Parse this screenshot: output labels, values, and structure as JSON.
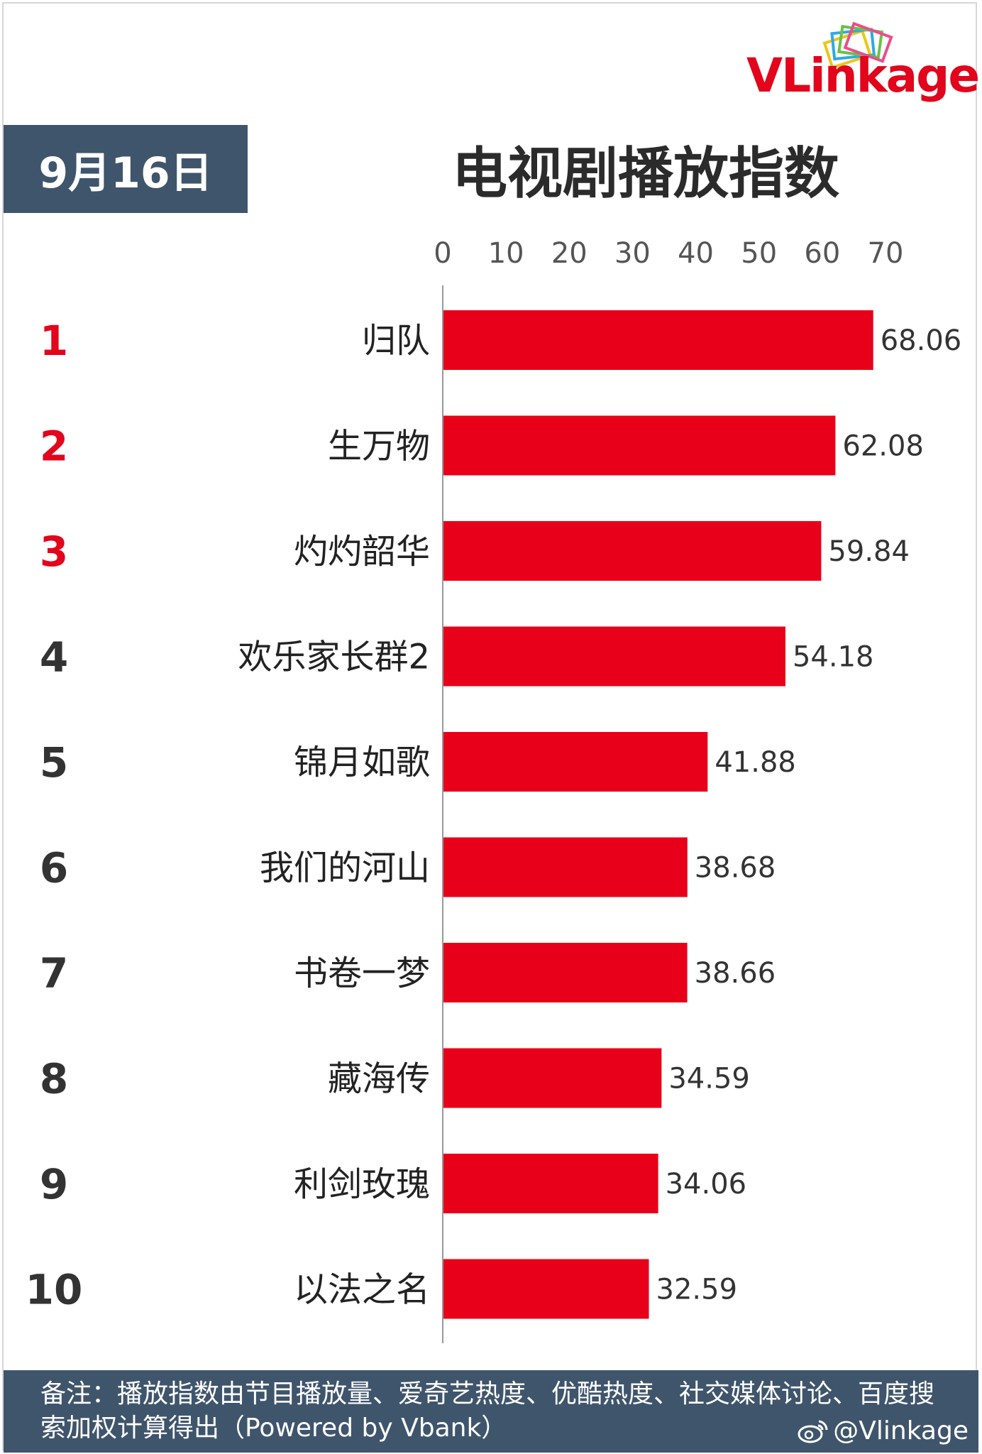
{
  "header": {
    "brand": "VLinkage",
    "date": "9月16日",
    "title": "电视剧播放指数"
  },
  "colors": {
    "bar": "#e8001a",
    "top_rank": "#e2051b",
    "rank": "#333333",
    "badge": "#3f556c",
    "footer": "#3f556c"
  },
  "chart_data": {
    "type": "bar",
    "orientation": "horizontal",
    "title": "电视剧播放指数",
    "xlim": [
      0,
      70
    ],
    "x_ticks": [
      "0",
      "10",
      "20",
      "30",
      "40",
      "50",
      "60",
      "70"
    ],
    "ranks": [
      "1",
      "2",
      "3",
      "4",
      "5",
      "6",
      "7",
      "8",
      "9",
      "10"
    ],
    "categories": [
      "归队",
      "生万物",
      "灼灼韶华",
      "欢乐家长群2",
      "锦月如歌",
      "我们的河山",
      "书卷一梦",
      "藏海传",
      "利剑玫瑰",
      "以法之名"
    ],
    "values": [
      68.06,
      62.08,
      59.84,
      54.18,
      41.88,
      38.68,
      38.66,
      34.59,
      34.06,
      32.59
    ],
    "value_labels": [
      "68.06",
      "62.08",
      "59.84",
      "54.18",
      "41.88",
      "38.68",
      "38.66",
      "34.59",
      "34.06",
      "32.59"
    ],
    "grid": false,
    "legend": "none"
  },
  "footer": {
    "note": "备注：播放指数由节目播放量、爱奇艺热度、优酷热度、社交媒体讨论、百度搜索加权计算得出（Powered by Vbank）",
    "credit": "@Vlinkage"
  }
}
